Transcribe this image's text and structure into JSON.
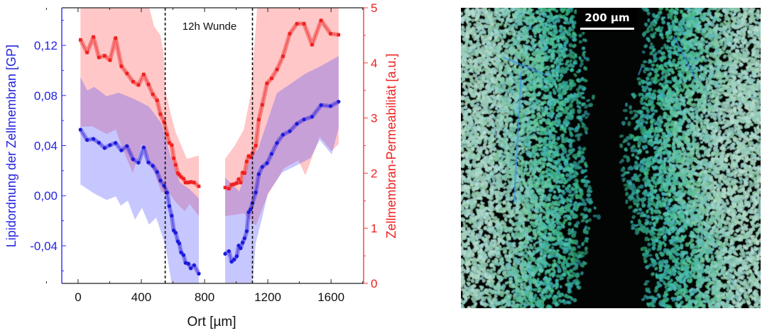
{
  "chart_data": {
    "type": "line",
    "title": "",
    "annotation": "12h Wunde",
    "wound_edges": [
      551,
      1103
    ],
    "xlabel": "Ort [µm]",
    "ylabel_left": "Lipidordnung der Zellmembran [GP]",
    "ylabel_right": "Zellmembran-Permeabilität [a.u.]",
    "xlim": [
      -103,
      1806
    ],
    "ylim_left": [
      -0.07,
      0.15
    ],
    "ylim_right": [
      0,
      5
    ],
    "x_ticks": [
      0,
      400,
      800,
      1200,
      1600
    ],
    "x_tick_labels": [
      "0",
      "400",
      "800",
      "1200",
      "1600"
    ],
    "y_left_ticks": [
      -0.04,
      0.0,
      0.04,
      0.08,
      0.12
    ],
    "y_left_tick_labels": [
      "-0,04",
      "0,00",
      "0,04",
      "0,08",
      "0,12"
    ],
    "y_right_ticks": [
      0,
      1,
      2,
      3,
      4,
      5
    ],
    "y_right_tick_labels": [
      "0",
      "1",
      "2",
      "3",
      "4",
      "5"
    ],
    "colors": {
      "blue": "#1a1adc",
      "red": "#f01e1e",
      "axis_left": "#2a2aff",
      "axis_right": "#f03c3c"
    },
    "segments_x": [
      [
        15,
        57,
        97,
        132,
        168,
        202,
        237,
        274,
        309,
        348,
        382,
        415,
        445,
        473,
        500,
        521,
        544,
        563,
        577,
        592,
        605,
        617,
        631,
        640,
        652,
        667,
        680,
        698,
        713,
        734,
        764
      ],
      [
        930,
        954,
        971,
        987,
        1004,
        1016,
        1028,
        1041,
        1053,
        1067,
        1079,
        1091,
        1103,
        1124,
        1143,
        1165,
        1195,
        1224,
        1258,
        1296,
        1339,
        1384,
        1429,
        1480,
        1537,
        1597,
        1648
      ]
    ],
    "series": [
      {
        "name": "Lipidordnung (GP)",
        "axis": "left",
        "marker": "circle",
        "segments": [
          [
            0.0528,
            0.0445,
            0.0453,
            0.0423,
            0.0381,
            0.0404,
            0.0421,
            0.0362,
            0.0396,
            0.0291,
            0.0264,
            0.0385,
            0.0266,
            0.0238,
            0.0189,
            0.0121,
            0.0079,
            0.0025,
            -0.0083,
            -0.016,
            -0.0277,
            -0.0296,
            -0.0364,
            -0.0381,
            -0.0453,
            -0.0474,
            -0.0536,
            -0.0543,
            -0.0579,
            -0.0555,
            -0.0623
          ],
          [
            -0.0464,
            -0.0443,
            -0.0526,
            -0.0509,
            -0.0483,
            -0.0398,
            -0.0419,
            -0.0374,
            -0.034,
            -0.0283,
            -0.0132,
            -0.0109,
            -0.006,
            0.0026,
            0.0172,
            0.023,
            0.026,
            0.0334,
            0.0421,
            0.0487,
            0.0515,
            0.0574,
            0.0609,
            0.063,
            0.0723,
            0.0715,
            0.0751
          ]
        ],
        "bands": [
          {
            "upper": [
              [
                15,
                0.0946
              ],
              [
                58,
                0.084
              ],
              [
                103,
                0.0868
              ],
              [
                180,
                0.0794
              ],
              [
                256,
                0.0822
              ],
              [
                346,
                0.0777
              ],
              [
                391,
                0.0749
              ],
              [
                449,
                0.071
              ],
              [
                526,
                0.058
              ],
              [
                553,
                0.0468
              ],
              [
                584,
                0.0315
              ],
              [
                643,
                0.0107
              ],
              [
                706,
                0.0051
              ],
              [
                764,
                -0.0023
              ]
            ],
            "lower": [
              [
                15,
                0.009
              ],
              [
                103,
                0.0017
              ],
              [
                180,
                -0.0034
              ],
              [
                238,
                -0.0006
              ],
              [
                270,
                -0.0079
              ],
              [
                315,
                -0.0039
              ],
              [
                360,
                -0.0192
              ],
              [
                404,
                -0.0096
              ],
              [
                449,
                -0.0231
              ],
              [
                494,
                -0.0175
              ],
              [
                553,
                -0.04
              ],
              [
                598,
                -0.075
              ],
              [
                764,
                -0.075
              ]
            ]
          },
          {
            "upper": [
              [
                930,
                0.0146
              ],
              [
                1020,
                0.0034
              ],
              [
                1093,
                0.0315
              ],
              [
                1138,
                0.037
              ],
              [
                1258,
                0.082
              ],
              [
                1348,
                0.0896
              ],
              [
                1438,
                0.0975
              ],
              [
                1528,
                0.103
              ],
              [
                1648,
                0.1115
              ]
            ],
            "lower": [
              [
                930,
                -0.075
              ],
              [
                1100,
                -0.075
              ],
              [
                1124,
                -0.0377
              ],
              [
                1169,
                -0.015
              ],
              [
                1200,
                0.0017
              ],
              [
                1290,
                0.0186
              ],
              [
                1380,
                0.024
              ],
              [
                1470,
                0.03
              ],
              [
                1528,
                0.0445
              ],
              [
                1604,
                0.033
              ],
              [
                1648,
                0.054
              ]
            ]
          }
        ]
      },
      {
        "name": "Zellmembran-Permeabilität",
        "axis": "right",
        "marker": "square",
        "segments": [
          [
            4.42,
            4.19,
            4.47,
            4.1,
            4.13,
            4.05,
            4.45,
            3.94,
            3.81,
            3.66,
            3.6,
            3.79,
            3.61,
            3.43,
            3.32,
            3.07,
            2.93,
            2.7,
            2.55,
            2.51,
            2.27,
            2.15,
            2.0,
            1.97,
            1.93,
            1.9,
            1.83,
            1.83,
            1.84,
            1.83,
            1.76
          ],
          [
            1.74,
            1.72,
            1.79,
            1.8,
            1.82,
            1.89,
            1.83,
            2.01,
            2.0,
            2.21,
            2.31,
            2.29,
            2.36,
            2.5,
            2.97,
            3.24,
            3.63,
            3.72,
            3.88,
            4.12,
            4.53,
            4.71,
            4.71,
            4.33,
            4.77,
            4.53,
            4.51
          ]
        ],
        "bands": [
          {
            "upper": [
              [
                15,
                5.2
              ],
              [
                434,
                5.2
              ],
              [
                480,
                4.67
              ],
              [
                521,
                4.5
              ],
              [
                540,
                4.2
              ],
              [
                553,
                3.5
              ],
              [
                584,
                3.1
              ],
              [
                616,
                2.75
              ],
              [
                688,
                2.26
              ],
              [
                764,
                2.32
              ]
            ],
            "lower": [
              [
                15,
                2.84
              ],
              [
                90,
                2.85
              ],
              [
                180,
                2.71
              ],
              [
                238,
                2.79
              ],
              [
                279,
                2.46
              ],
              [
                346,
                2.0
              ],
              [
                404,
                2.53
              ],
              [
                449,
                2.26
              ],
              [
                526,
                1.66
              ],
              [
                584,
                1.61
              ],
              [
                616,
                1.48
              ],
              [
                674,
                1.31
              ],
              [
                706,
                1.44
              ],
              [
                764,
                1.22
              ]
            ]
          },
          {
            "upper": [
              [
                930,
                2.26
              ],
              [
                989,
                2.49
              ],
              [
                1048,
                2.79
              ],
              [
                1093,
                3.44
              ],
              [
                1138,
                5.2
              ],
              [
                1648,
                5.2
              ]
            ],
            "lower": [
              [
                930,
                1.22
              ],
              [
                1048,
                1.27
              ],
              [
                1124,
                1.05
              ],
              [
                1200,
                1.61
              ],
              [
                1303,
                2.09
              ],
              [
                1393,
                2.23
              ],
              [
                1438,
                1.96
              ],
              [
                1528,
                2.66
              ],
              [
                1604,
                2.4
              ],
              [
                1648,
                2.53
              ]
            ]
          }
        ]
      }
    ]
  },
  "micrograph": {
    "scale_bar_label": "200 µm"
  }
}
